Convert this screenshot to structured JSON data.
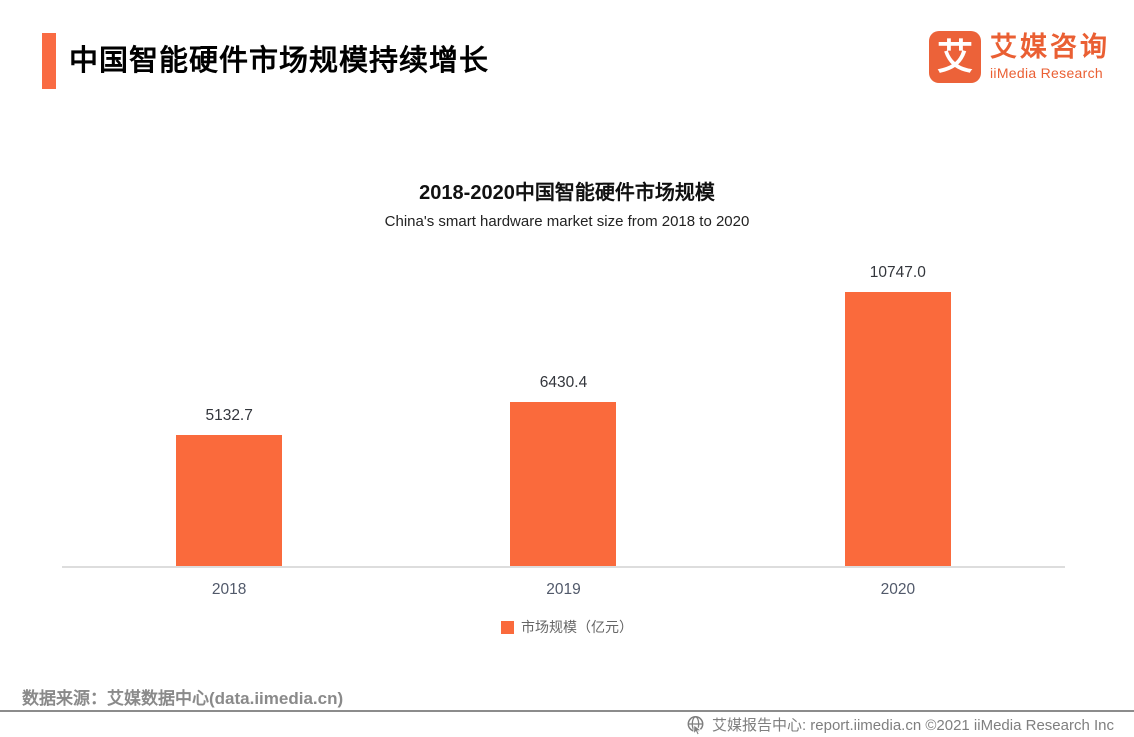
{
  "header": {
    "title": "中国智能硬件市场规模持续增长",
    "logo": {
      "glyph": "艾",
      "brand_cn": "艾媒咨询",
      "brand_en": "iiMedia Research"
    }
  },
  "chart": {
    "title": "2018-2020中国智能硬件市场规模",
    "subtitle": "China's smart hardware market size from 2018 to 2020",
    "legend_label": "市场规模（亿元）"
  },
  "chart_data": {
    "type": "bar",
    "categories": [
      "2018",
      "2019",
      "2020"
    ],
    "values": [
      5132.7,
      6430.4,
      10747.0
    ],
    "value_labels": [
      "5132.7",
      "6430.4",
      "10747.0"
    ],
    "series": [
      {
        "name": "市场规模（亿元）",
        "values": [
          5132.7,
          6430.4,
          10747.0
        ]
      }
    ],
    "title": "2018-2020中国智能硬件市场规模",
    "subtitle": "China's smart hardware market size from 2018 to 2020",
    "xlabel": "",
    "ylabel": "市场规模（亿元）",
    "ylim": [
      0,
      11000
    ],
    "grid": false,
    "legend_position": "bottom",
    "bar_color": "#FA6A3C",
    "y_axis_visible": false
  },
  "footer": {
    "source": "数据来源：艾媒数据中心(data.iimedia.cn)",
    "report_center": "艾媒报告中心:  report.iimedia.cn ©2021  iiMedia Research  Inc"
  },
  "colors": {
    "accent_orange": "#F96B43",
    "bar_orange": "#FA6A3C",
    "logo_orange": "#EA5F33",
    "footer_gray": "#8A8A8A"
  }
}
